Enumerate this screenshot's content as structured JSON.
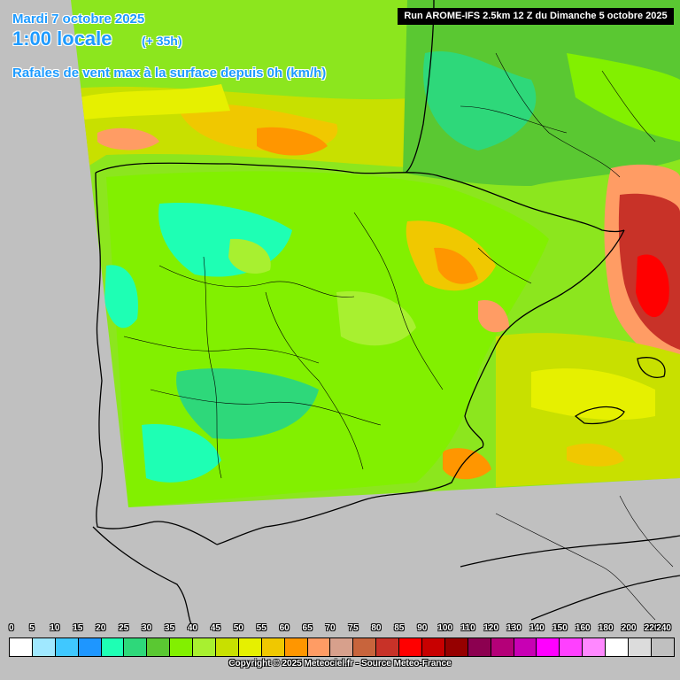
{
  "header": {
    "date": "Mardi 7 octobre 2025",
    "time": "1:00 locale",
    "offset": "(+ 35h)",
    "parameter": "Rafales de vent max à la surface depuis 0h (km/h)",
    "run": "Run AROME-IFS 2.5km 12 Z du Dimanche 5 octobre 2025"
  },
  "legend": {
    "labels": [
      "0",
      "5",
      "10",
      "15",
      "20",
      "25",
      "30",
      "35",
      "40",
      "45",
      "50",
      "55",
      "60",
      "65",
      "70",
      "75",
      "80",
      "85",
      "90",
      "100",
      "110",
      "120",
      "130",
      "140",
      "150",
      "160",
      "180",
      "200",
      "220",
      "240"
    ],
    "colors": [
      "#ffffff",
      "#a0e8ff",
      "#40c8ff",
      "#1e96ff",
      "#1effb4",
      "#2ed87a",
      "#5ac832",
      "#82f000",
      "#a8f030",
      "#c8e000",
      "#e6f000",
      "#f0c800",
      "#ff9600",
      "#ff9c64",
      "#d7a08c",
      "#c8643c",
      "#c83228",
      "#ff0000",
      "#c80000",
      "#960000",
      "#8c0050",
      "#b40078",
      "#c800b4",
      "#ff00ff",
      "#ff40ff",
      "#ff88ff",
      "#ffffff",
      "#dcdcdc",
      "#c0c0c0"
    ]
  },
  "copyright": "Copyright © 2025 Meteociel.fr - Source Meteo-France"
}
